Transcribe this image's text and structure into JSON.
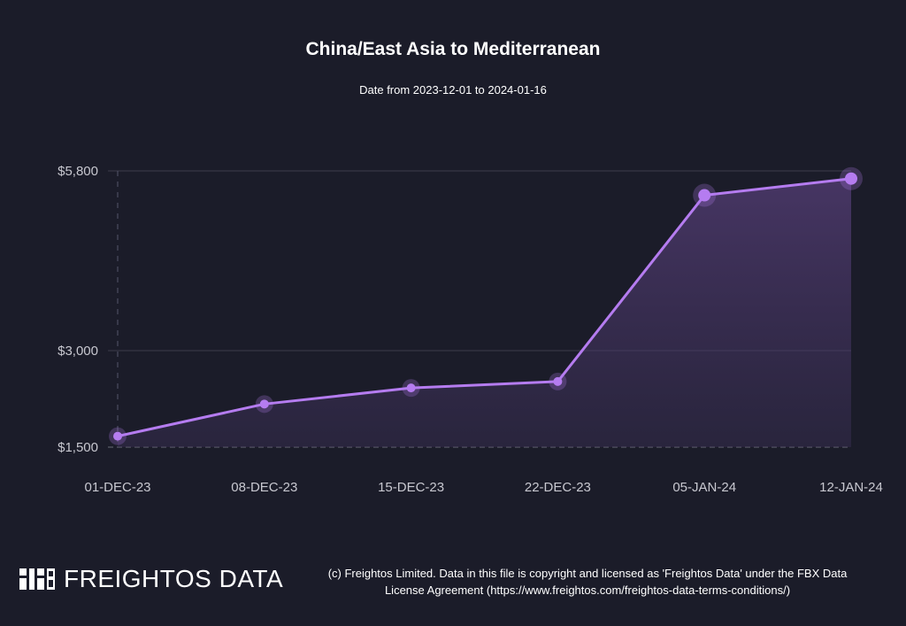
{
  "header": {
    "title": "China/East Asia to Mediterranean",
    "subtitle": "Date from 2023-12-01 to 2024-01-16"
  },
  "colors": {
    "background": "#1b1c29",
    "line": "#b57cf0",
    "grid": "#3c3d4c"
  },
  "chart_data": {
    "type": "area",
    "title": "China/East Asia to Mediterranean",
    "subtitle": "Date from 2023-12-01 to 2024-01-16",
    "categories": [
      "01-DEC-23",
      "08-DEC-23",
      "15-DEC-23",
      "22-DEC-23",
      "05-JAN-24",
      "12-JAN-24"
    ],
    "series": [
      {
        "values": [
          1670,
          2170,
          2420,
          2520,
          5420,
          5680
        ]
      }
    ],
    "y_ticks": [
      1500,
      3000,
      5800
    ],
    "y_tick_labels": [
      "$1,500",
      "$3,000",
      "$5,800"
    ],
    "ylim": [
      1500,
      5800
    ],
    "xlabel": "",
    "ylabel": "",
    "grid": true
  },
  "footer": {
    "logo_text": "FREIGHTOS DATA",
    "copyright_line1": "(c) Freightos Limited. Data in this file is copyright and licensed as 'Freightos Data' under the FBX Data",
    "copyright_line2": "License Agreement (https://www.freightos.com/freightos-data-terms-conditions/)"
  }
}
